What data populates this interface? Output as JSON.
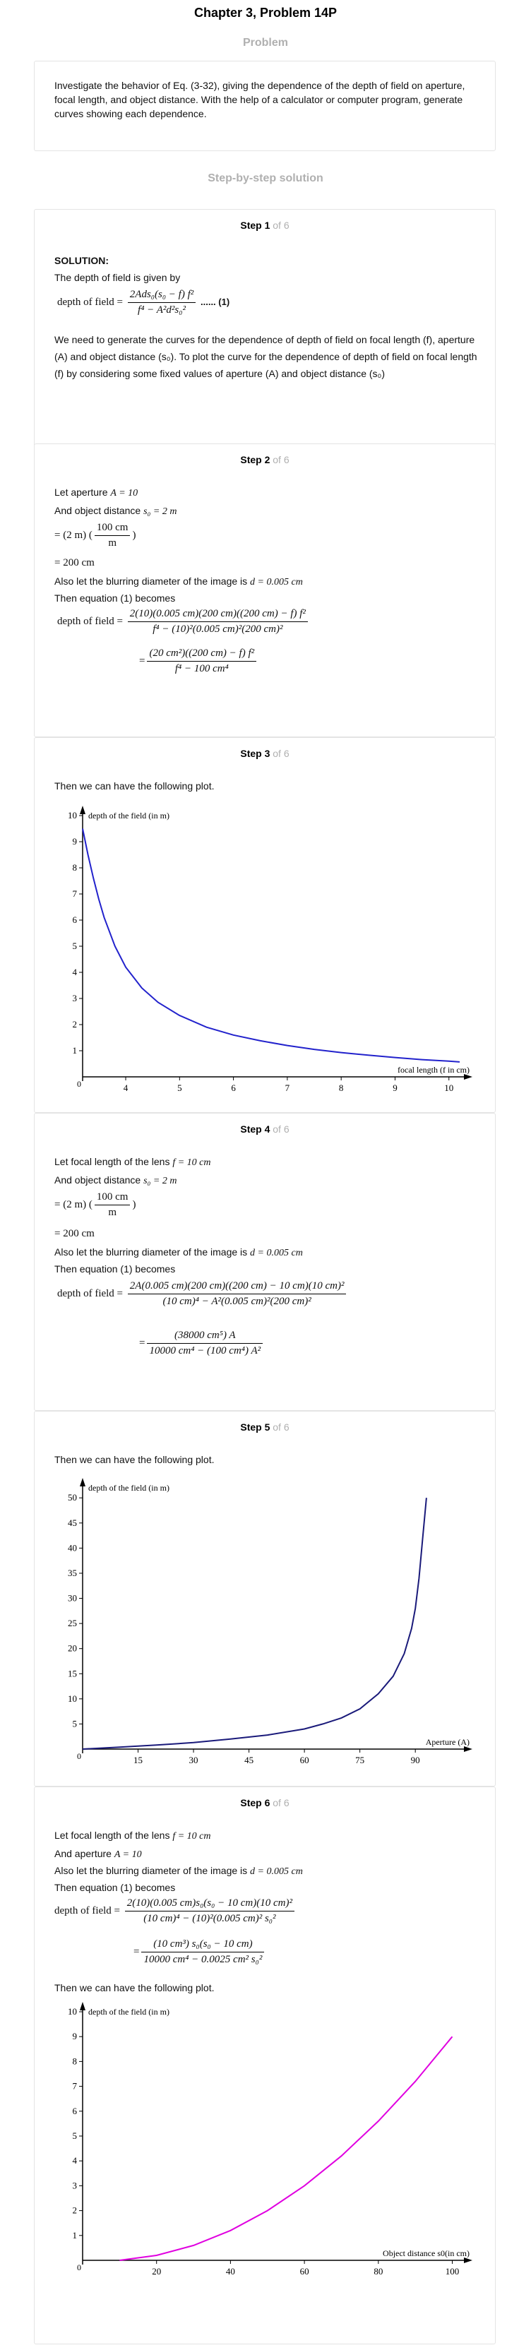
{
  "header": {
    "chapter_title": "Chapter 3, Problem 14P",
    "problem_label": "Problem"
  },
  "problem": {
    "text": "Investigate the behavior of Eq. (3-32), giving the dependence of the depth of field on aperture, focal length, and object distance. With the help of a calculator or computer program, generate curves showing each dependence."
  },
  "solution_heading": "Step-by-step solution",
  "steps": [
    {
      "label": "Step 1",
      "of": "of 6",
      "solution_label": "SOLUTION:",
      "p1": "The depth of field is given by",
      "eq_lhs": "depth of field =",
      "eq_num": "2Ads₀(s₀ − f) f²",
      "eq_den": "f⁴ − A²d²s₀²",
      "eq_tag": "...... (1)",
      "p2": "We need to generate the curves for the dependence of depth of field on focal length (f), aperture (A) and object distance (s₀). To plot the curve for the dependence of depth of field on focal length (f) by considering some fixed values of aperture (A) and object distance (s₀)"
    },
    {
      "label": "Step 2",
      "of": "of 6",
      "l1": "Let aperture",
      "l1m": "A = 10",
      "l2": "And object distance",
      "l2m": "s₀ = 2 m",
      "conv_a": "= (2 m)",
      "conv_num": "100 cm",
      "conv_den": "m",
      "conv_b": "= 200 cm",
      "l3": "Also let the blurring diameter of the image is",
      "l3m": "d = 0.005 cm",
      "l4": "Then equation (1) becomes",
      "eq1_lhs": "depth of field =",
      "eq1_num": "2(10)(0.005 cm)(200 cm)((200 cm) − f) f²",
      "eq1_den": "f⁴ − (10)²(0.005 cm)²(200 cm)²",
      "eq2_num": "(20 cm²)((200 cm) − f) f²",
      "eq2_den": "f⁴ − 100 cm⁴"
    },
    {
      "label": "Step 3",
      "of": "of 6",
      "p1": "Then we can have the following plot."
    },
    {
      "label": "Step 4",
      "of": "of 6",
      "l1": "Let focal length of the lens",
      "l1m": "f = 10 cm",
      "l2": "And object distance",
      "l2m": "s₀ = 2 m",
      "conv_a": "= (2 m)",
      "conv_num": "100 cm",
      "conv_den": "m",
      "conv_b": "= 200 cm",
      "l3": "Also let the blurring diameter of the image is",
      "l3m": "d = 0.005 cm",
      "l4": "Then equation (1) becomes",
      "eq1_lhs": "depth of field =",
      "eq1_num": "2A(0.005 cm)(200 cm)((200 cm) − 10 cm)(10 cm)²",
      "eq1_den": "(10 cm)⁴ − A²(0.005 cm)²(200 cm)²",
      "eq2_num": "(38000 cm⁵) A",
      "eq2_den": "10000 cm⁴ − (100 cm⁴) A²"
    },
    {
      "label": "Step 5",
      "of": "of 6",
      "p1": "Then we can have the following plot."
    },
    {
      "label": "Step 6",
      "of": "of 6",
      "l1": "Let focal length of the lens",
      "l1m": "f = 10 cm",
      "l2": "And aperture",
      "l2m": "A = 10",
      "l3": "Also let the blurring diameter of the image is",
      "l3m": "d = 0.005 cm",
      "l4": "Then equation (1) becomes",
      "eq1_lhs": "depth of field =",
      "eq1_num": "2(10)(0.005 cm)s₀(s₀ − 10 cm)(10 cm)²",
      "eq1_den": "(10 cm)⁴ − (10)²(0.005 cm)² s₀²",
      "eq2_num": "(10 cm³) s₀(s₀ − 10 cm)",
      "eq2_den": "10000 cm⁴ − 0.0025 cm² s₀²",
      "p5": "Then we can have the following plot."
    }
  ],
  "chart_data": [
    {
      "type": "line",
      "ylabel": "depth of the field (in m)",
      "xlabel": "focal length (f in cm)",
      "xlim": [
        3.2,
        10.2
      ],
      "ylim": [
        0,
        10
      ],
      "xticks": [
        4,
        5,
        6,
        7,
        8,
        9,
        10
      ],
      "yticks": [
        1,
        2,
        3,
        4,
        5,
        6,
        7,
        8,
        9,
        10
      ],
      "x_origin_label": "0",
      "y_origin_label": "0",
      "color": "#2222cc",
      "x": [
        3.2,
        3.3,
        3.4,
        3.5,
        3.6,
        3.8,
        4.0,
        4.3,
        4.6,
        5.0,
        5.5,
        6.0,
        6.5,
        7.0,
        7.5,
        8.0,
        8.5,
        9.0,
        9.5,
        10.0,
        10.2
      ],
      "y": [
        9.5,
        8.5,
        7.6,
        6.8,
        6.1,
        5.0,
        4.2,
        3.4,
        2.85,
        2.35,
        1.9,
        1.6,
        1.38,
        1.2,
        1.05,
        0.93,
        0.83,
        0.74,
        0.66,
        0.6,
        0.57
      ]
    },
    {
      "type": "line",
      "ylabel": "depth of the field (in m)",
      "xlabel": "Aperture (A)",
      "xlim": [
        0,
        102
      ],
      "ylim": [
        0,
        52
      ],
      "xticks": [
        15,
        30,
        45,
        60,
        75,
        90
      ],
      "yticks": [
        5,
        10,
        15,
        20,
        25,
        30,
        35,
        40,
        45,
        50
      ],
      "x_origin_label": "0",
      "y_origin_label": "",
      "color": "#1a1a7a",
      "x": [
        0,
        10,
        20,
        30,
        40,
        50,
        60,
        65,
        70,
        75,
        80,
        84,
        87,
        89,
        90,
        91,
        92,
        93
      ],
      "y": [
        0,
        0.4,
        0.8,
        1.3,
        2.0,
        2.8,
        4.0,
        5.0,
        6.2,
        8.0,
        11.0,
        14.5,
        19.0,
        24.0,
        28.0,
        34.0,
        42.0,
        50.0
      ]
    },
    {
      "type": "line",
      "ylabel": "depth of the field (in m)",
      "xlabel": "Object distance s0(in cm)",
      "xlim": [
        0,
        102
      ],
      "ylim": [
        0,
        10
      ],
      "xticks": [
        20,
        40,
        60,
        80,
        100
      ],
      "yticks": [
        1,
        2,
        3,
        4,
        5,
        6,
        7,
        8,
        9,
        10
      ],
      "x_origin_label": "0",
      "y_origin_label": "0",
      "color": "#e000e0",
      "x": [
        10,
        20,
        30,
        40,
        50,
        60,
        70,
        80,
        90,
        100
      ],
      "y": [
        0,
        0.2,
        0.6,
        1.2,
        2.0,
        3.0,
        4.2,
        5.6,
        7.2,
        9.0
      ]
    }
  ]
}
